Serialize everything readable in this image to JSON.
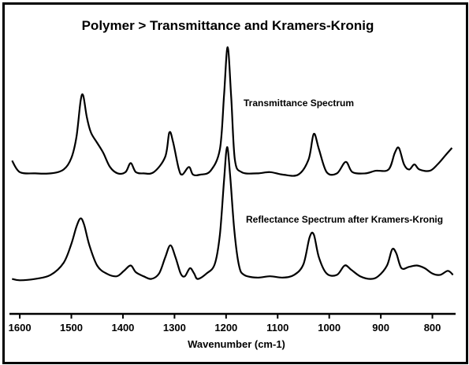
{
  "chart_data": {
    "type": "line",
    "title": "Polymer > Transmittance and Kramers-Kronig",
    "xlabel": "Wavenumber (cm-1)",
    "ylabel": "",
    "xlim": [
      1620,
      755
    ],
    "x_reversed": true,
    "y_axis_shown": false,
    "grid": false,
    "xticks": [
      1600,
      1500,
      1400,
      1300,
      1200,
      1100,
      1000,
      900,
      800
    ],
    "series": [
      {
        "name": "Transmittance Spectrum",
        "color": "#000000",
        "points": [
          [
            1615,
            0.11
          ],
          [
            1600,
            0.02
          ],
          [
            1570,
            0.01
          ],
          [
            1540,
            0.01
          ],
          [
            1515,
            0.04
          ],
          [
            1500,
            0.13
          ],
          [
            1490,
            0.3
          ],
          [
            1482,
            0.58
          ],
          [
            1477,
            0.62
          ],
          [
            1470,
            0.45
          ],
          [
            1462,
            0.33
          ],
          [
            1450,
            0.25
          ],
          [
            1438,
            0.17
          ],
          [
            1425,
            0.06
          ],
          [
            1410,
            0.01
          ],
          [
            1395,
            0.02
          ],
          [
            1385,
            0.09
          ],
          [
            1375,
            0.02
          ],
          [
            1360,
            0.01
          ],
          [
            1340,
            0.02
          ],
          [
            1318,
            0.14
          ],
          [
            1310,
            0.33
          ],
          [
            1303,
            0.26
          ],
          [
            1292,
            0.05
          ],
          [
            1285,
            0.0
          ],
          [
            1272,
            0.06
          ],
          [
            1264,
            0.0
          ],
          [
            1250,
            0.0
          ],
          [
            1230,
            0.03
          ],
          [
            1212,
            0.2
          ],
          [
            1204,
            0.62
          ],
          [
            1197,
            1.0
          ],
          [
            1190,
            0.6
          ],
          [
            1183,
            0.12
          ],
          [
            1170,
            0.02
          ],
          [
            1140,
            0.01
          ],
          [
            1115,
            0.02
          ],
          [
            1090,
            0.0
          ],
          [
            1060,
            0.0
          ],
          [
            1040,
            0.12
          ],
          [
            1030,
            0.32
          ],
          [
            1020,
            0.2
          ],
          [
            1005,
            0.02
          ],
          [
            985,
            0.01
          ],
          [
            968,
            0.1
          ],
          [
            955,
            0.02
          ],
          [
            930,
            0.01
          ],
          [
            910,
            0.03
          ],
          [
            885,
            0.04
          ],
          [
            873,
            0.17
          ],
          [
            865,
            0.21
          ],
          [
            855,
            0.08
          ],
          [
            845,
            0.04
          ],
          [
            835,
            0.08
          ],
          [
            825,
            0.04
          ],
          [
            805,
            0.03
          ],
          [
            790,
            0.08
          ],
          [
            775,
            0.15
          ],
          [
            762,
            0.21
          ]
        ]
      },
      {
        "name": "Reflectance Spectrum after Kramers-Kronig",
        "color": "#000000",
        "points": [
          [
            1615,
            0.02
          ],
          [
            1600,
            0.01
          ],
          [
            1570,
            0.02
          ],
          [
            1540,
            0.05
          ],
          [
            1515,
            0.14
          ],
          [
            1500,
            0.28
          ],
          [
            1490,
            0.41
          ],
          [
            1482,
            0.47
          ],
          [
            1475,
            0.42
          ],
          [
            1465,
            0.27
          ],
          [
            1450,
            0.12
          ],
          [
            1432,
            0.06
          ],
          [
            1412,
            0.04
          ],
          [
            1398,
            0.08
          ],
          [
            1385,
            0.12
          ],
          [
            1375,
            0.07
          ],
          [
            1360,
            0.04
          ],
          [
            1345,
            0.02
          ],
          [
            1330,
            0.06
          ],
          [
            1318,
            0.18
          ],
          [
            1308,
            0.27
          ],
          [
            1298,
            0.18
          ],
          [
            1288,
            0.06
          ],
          [
            1280,
            0.04
          ],
          [
            1270,
            0.1
          ],
          [
            1262,
            0.06
          ],
          [
            1255,
            0.02
          ],
          [
            1238,
            0.06
          ],
          [
            1222,
            0.13
          ],
          [
            1212,
            0.35
          ],
          [
            1204,
            0.75
          ],
          [
            1198,
            1.0
          ],
          [
            1192,
            0.78
          ],
          [
            1184,
            0.38
          ],
          [
            1175,
            0.12
          ],
          [
            1165,
            0.05
          ],
          [
            1140,
            0.03
          ],
          [
            1115,
            0.04
          ],
          [
            1090,
            0.03
          ],
          [
            1068,
            0.05
          ],
          [
            1050,
            0.13
          ],
          [
            1038,
            0.33
          ],
          [
            1030,
            0.35
          ],
          [
            1020,
            0.18
          ],
          [
            1005,
            0.06
          ],
          [
            985,
            0.05
          ],
          [
            970,
            0.12
          ],
          [
            958,
            0.09
          ],
          [
            940,
            0.04
          ],
          [
            920,
            0.02
          ],
          [
            905,
            0.04
          ],
          [
            888,
            0.12
          ],
          [
            878,
            0.24
          ],
          [
            870,
            0.21
          ],
          [
            860,
            0.1
          ],
          [
            845,
            0.11
          ],
          [
            830,
            0.12
          ],
          [
            815,
            0.1
          ],
          [
            800,
            0.06
          ],
          [
            785,
            0.05
          ],
          [
            770,
            0.08
          ],
          [
            760,
            0.05
          ]
        ]
      }
    ]
  }
}
